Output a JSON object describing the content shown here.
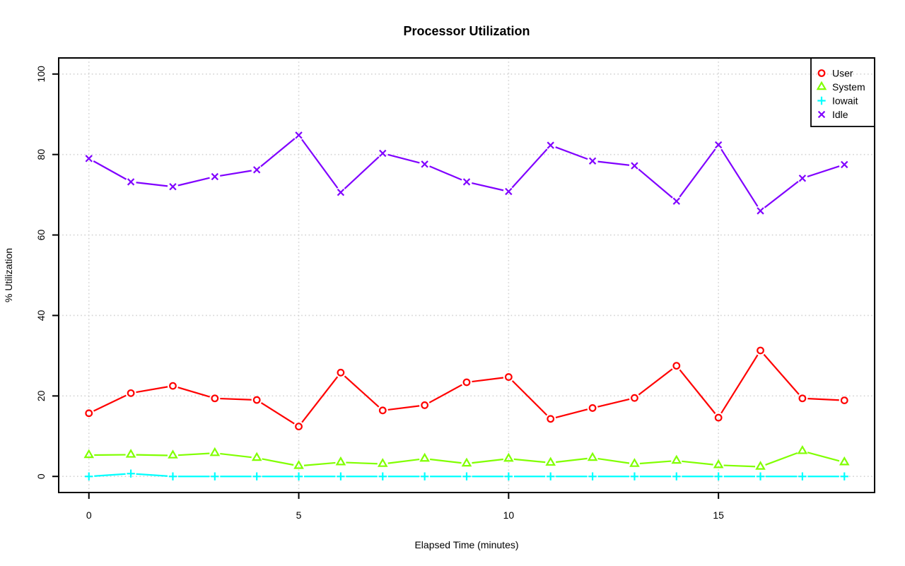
{
  "chart_data": {
    "type": "line",
    "title": "Processor Utilization",
    "xlabel": "Elapsed Time (minutes)",
    "ylabel": "% Utilization",
    "x": [
      0,
      1,
      2,
      3,
      4,
      5,
      6,
      7,
      8,
      9,
      10,
      11,
      12,
      13,
      14,
      15,
      16,
      17,
      18
    ],
    "xlim": [
      -0.72,
      18.72
    ],
    "ylim": [
      -4,
      104
    ],
    "x_ticks": [
      0,
      5,
      10,
      15
    ],
    "y_ticks": [
      0,
      20,
      40,
      60,
      80,
      100
    ],
    "grid": true,
    "grid_color": "#d3d3d3",
    "axis_color": "#000000",
    "background_color": "#ffffff",
    "legend_position": "topright",
    "series": [
      {
        "name": "User",
        "color": "#ff0000",
        "marker": "circle",
        "values": [
          15.7,
          20.7,
          22.5,
          19.4,
          19.0,
          12.4,
          25.8,
          16.4,
          17.7,
          23.4,
          24.7,
          14.3,
          17.0,
          19.5,
          27.5,
          14.6,
          31.3,
          19.4,
          18.9
        ]
      },
      {
        "name": "System",
        "color": "#80ff00",
        "marker": "triangle",
        "values": [
          5.3,
          5.4,
          5.2,
          5.8,
          4.6,
          2.6,
          3.5,
          3.1,
          4.4,
          3.2,
          4.4,
          3.4,
          4.6,
          3.1,
          3.9,
          2.8,
          2.4,
          6.3,
          3.5
        ]
      },
      {
        "name": "Iowait",
        "color": "#00ffff",
        "marker": "plus",
        "values": [
          0.0,
          0.7,
          0.0,
          0.0,
          0.0,
          0.0,
          0.0,
          0.0,
          0.0,
          0.0,
          0.0,
          0.0,
          0.0,
          0.0,
          0.0,
          0.0,
          0.0,
          0.0,
          0.0
        ]
      },
      {
        "name": "Idle",
        "color": "#8000ff",
        "marker": "x",
        "values": [
          79.0,
          73.2,
          72.0,
          74.5,
          76.2,
          84.8,
          70.6,
          80.3,
          77.6,
          73.2,
          70.8,
          82.3,
          78.4,
          77.2,
          68.4,
          82.4,
          66.0,
          74.1,
          77.5
        ]
      }
    ]
  }
}
